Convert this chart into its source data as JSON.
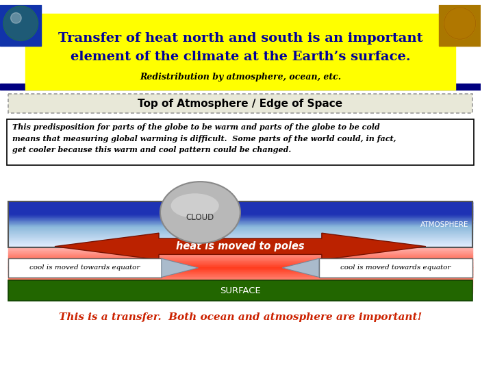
{
  "title_line1": "Transfer of heat north and south is an important",
  "title_line2": "element of the climate at the Earth’s surface.",
  "subtitle": "Redistribution by atmosphere, ocean, etc.",
  "box_label": "Top of Atmosphere / Edge of Space",
  "body_text": "This predisposition for parts of the globe to be warm and parts of the globe to be cold\nmeans that measuring global warming is difficult.  Some parts of the world could, in fact,\nget cooler because this warm and cool pattern could be changed.",
  "heat_label": "heat is moved to poles",
  "cool_left": "cool is moved towards equator",
  "cool_right": "cool is moved towards equator",
  "cloud_label": "CLOUD",
  "atmo_label": "ATMOSPHERE",
  "surface_label": "SURFACE",
  "footer": "This is a transfer.  Both ocean and atmosphere are important!",
  "bg_color": "#ffffff",
  "title_bg": "#ffff00",
  "title_color": "#000099",
  "subtitle_color": "#000000",
  "header_bar_color": "#000080",
  "dotted_box_bg": "#e8e8d8",
  "body_box_border": "#000000",
  "heat_arrow_color": "#bb2200",
  "heat_text_color": "#ffffff",
  "cool_arrow_color": "#aabbcc",
  "surface_color": "#226600",
  "surface_text_color": "#ffffff",
  "footer_color": "#cc2200",
  "cloud_fill_top": "#d0d0d0",
  "cloud_fill_bot": "#a0a0a0",
  "cloud_edge": "#888888",
  "atmo_blue_dark": "#2233bb",
  "atmo_blue_mid": "#88aadd",
  "atmo_light": "#ddeeff"
}
